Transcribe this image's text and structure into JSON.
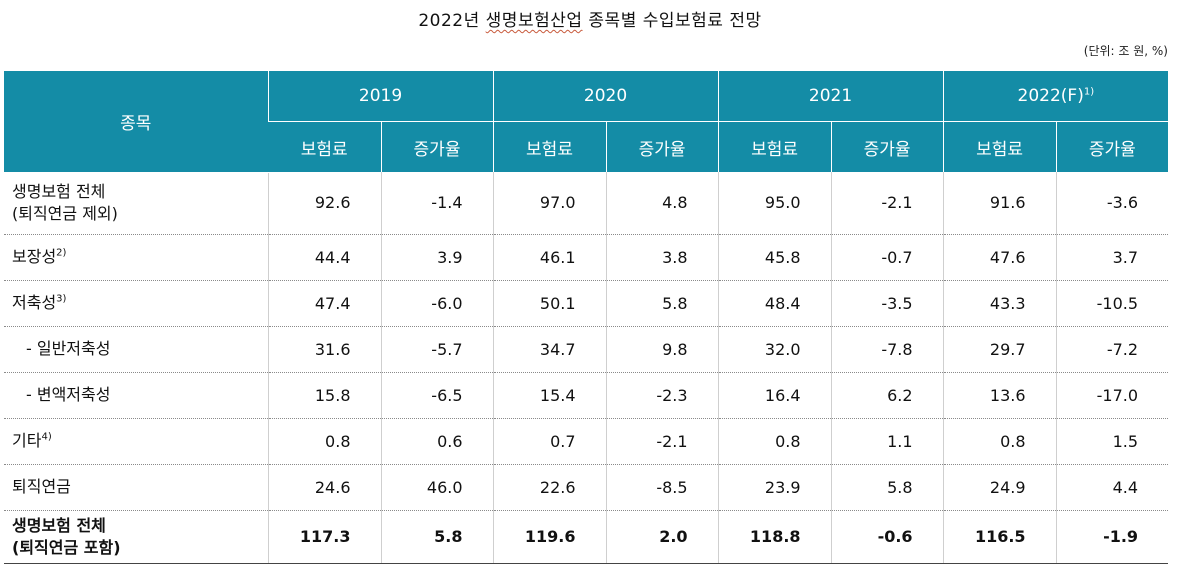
{
  "title": {
    "prefix": "2022년 ",
    "underlined": "생명보험산업",
    "suffix": " 종목별 수입보험료 전망"
  },
  "unit": "(단위: 조 원, %)",
  "header": {
    "category": "종목",
    "years": [
      {
        "label": "2019",
        "sup": ""
      },
      {
        "label": "2020",
        "sup": ""
      },
      {
        "label": "2021",
        "sup": ""
      },
      {
        "label": "2022(F)",
        "sup": "1)"
      }
    ],
    "premium": "보험료",
    "growth": "증가율"
  },
  "rows": [
    {
      "label1": "생명보험 전체",
      "label2": "(퇴직연금 제외)",
      "sup": "",
      "values": [
        "92.6",
        "-1.4",
        "97.0",
        "4.8",
        "95.0",
        "-2.1",
        "91.6",
        "-3.6"
      ]
    },
    {
      "label1": "보장성",
      "label2": "",
      "sup": "2)",
      "values": [
        "44.4",
        "3.9",
        "46.1",
        "3.8",
        "45.8",
        "-0.7",
        "47.6",
        "3.7"
      ]
    },
    {
      "label1": "저축성",
      "label2": "",
      "sup": "3)",
      "values": [
        "47.4",
        "-6.0",
        "50.1",
        "5.8",
        "48.4",
        "-3.5",
        "43.3",
        "-10.5"
      ]
    },
    {
      "label1": "-  일반저축성",
      "label2": "",
      "sup": "",
      "values": [
        "31.6",
        "-5.7",
        "34.7",
        "9.8",
        "32.0",
        "-7.8",
        "29.7",
        "-7.2"
      ]
    },
    {
      "label1": "-  변액저축성",
      "label2": "",
      "sup": "",
      "values": [
        "15.8",
        "-6.5",
        "15.4",
        "-2.3",
        "16.4",
        "6.2",
        "13.6",
        "-17.0"
      ]
    },
    {
      "label1": "기타",
      "label2": "",
      "sup": "4)",
      "values": [
        "0.8",
        "0.6",
        "0.7",
        "-2.1",
        "0.8",
        "1.1",
        "0.8",
        "1.5"
      ]
    },
    {
      "label1": "퇴직연금",
      "label2": "",
      "sup": "",
      "values": [
        "24.6",
        "46.0",
        "22.6",
        "-8.5",
        "23.9",
        "5.8",
        "24.9",
        "4.4"
      ]
    },
    {
      "label1": "생명보험 전체",
      "label2": "(퇴직연금 포함)",
      "sup": "",
      "values": [
        "117.3",
        "5.8",
        "119.6",
        "2.0",
        "118.8",
        "-0.6",
        "116.5",
        "-1.9"
      ]
    }
  ]
}
